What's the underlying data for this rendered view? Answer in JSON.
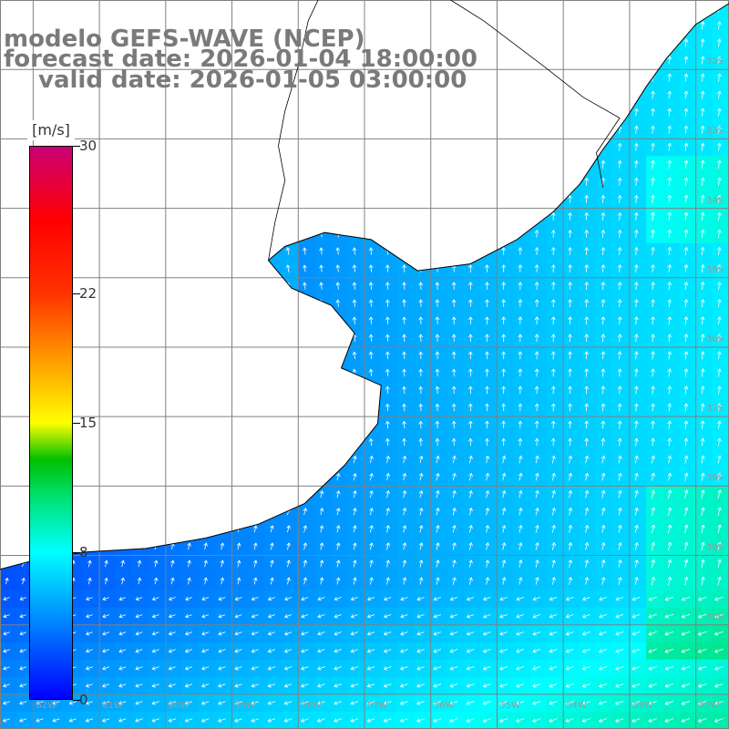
{
  "map": {
    "title_line1": "modelo GEFS-WAVE (NCEP)",
    "title_line2": "forecast date: 2026-01-04 18:00:00",
    "title_line3": "valid date: 2026-01-05 03:00:00",
    "variable": "wind speed and direction",
    "units": "[m/s]",
    "extent": {
      "lon_min": -62.5,
      "lon_max": -51.5,
      "lat_min": -41.5,
      "lat_max": -31.0
    },
    "grid_step_deg": 1.0,
    "grid_color": "#808080",
    "land_color": "#ffffff",
    "coast_color": "#000000",
    "arrow_color": "#ffffff"
  },
  "colorbar": {
    "min": 0,
    "max": 30,
    "ticks": [
      {
        "value": 0,
        "label": "0"
      },
      {
        "value": 8,
        "label": "8"
      },
      {
        "value": 15,
        "label": "15"
      },
      {
        "value": 22,
        "label": "22"
      },
      {
        "value": 30,
        "label": "30"
      }
    ],
    "stops": [
      {
        "value": 0,
        "color": "#0000ff"
      },
      {
        "value": 8,
        "color": "#00ffff"
      },
      {
        "value": 11,
        "color": "#00e070"
      },
      {
        "value": 13,
        "color": "#00c000"
      },
      {
        "value": 15,
        "color": "#ffff00"
      },
      {
        "value": 18.5,
        "color": "#ff9900"
      },
      {
        "value": 22,
        "color": "#ff3300"
      },
      {
        "value": 26,
        "color": "#ff0000"
      },
      {
        "value": 30,
        "color": "#cc0077"
      }
    ]
  },
  "lat_labels": [
    "32S",
    "33S",
    "34S",
    "35S",
    "36S",
    "37S",
    "38S",
    "39S",
    "40S"
  ],
  "lon_labels": [
    "62W",
    "61W",
    "60W",
    "59W",
    "58W",
    "57W",
    "56W",
    "55W",
    "54W",
    "53W",
    "52W"
  ]
}
